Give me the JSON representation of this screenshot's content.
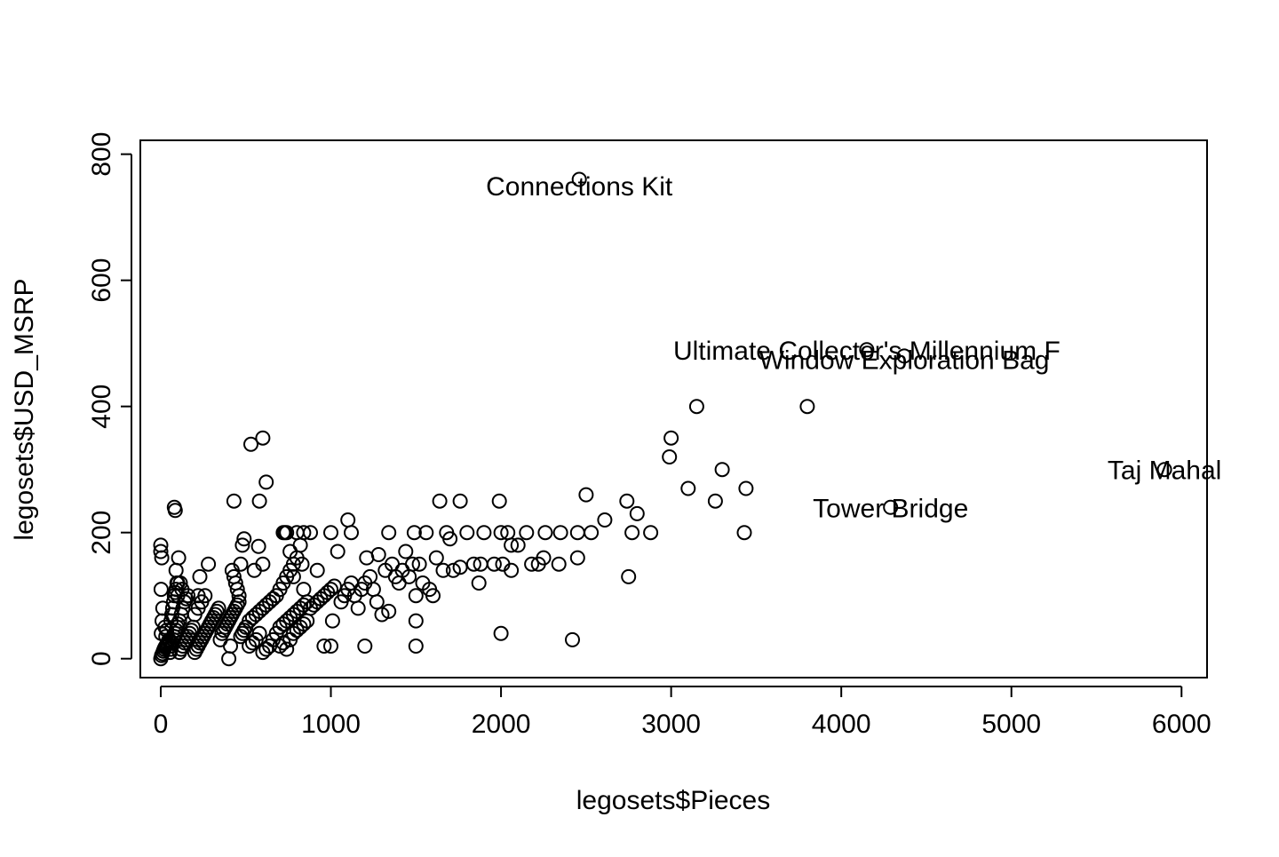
{
  "chart_data": {
    "type": "scatter",
    "title": "",
    "xlabel": "legosets$Pieces",
    "ylabel": "legosets$USD_MSRP",
    "xlim": [
      -120,
      6150
    ],
    "ylim": [
      -30,
      822
    ],
    "x_ticks": [
      0,
      1000,
      2000,
      3000,
      4000,
      5000,
      6000
    ],
    "y_ticks": [
      0,
      200,
      400,
      600,
      800
    ],
    "grid": false,
    "legend": "none",
    "marker": "open-circle",
    "point_color": "#000000",
    "series": [
      {
        "points": [
          [
            0,
            0
          ],
          [
            5,
            5
          ],
          [
            10,
            8
          ],
          [
            15,
            12
          ],
          [
            20,
            15
          ],
          [
            25,
            18
          ],
          [
            30,
            20
          ],
          [
            35,
            22
          ],
          [
            40,
            25
          ],
          [
            45,
            28
          ],
          [
            50,
            30
          ],
          [
            3,
            40
          ],
          [
            8,
            60
          ],
          [
            12,
            80
          ],
          [
            2,
            110
          ],
          [
            6,
            160
          ],
          [
            0,
            170
          ],
          [
            0,
            180
          ],
          [
            25,
            50
          ],
          [
            30,
            35
          ],
          [
            35,
            45
          ],
          [
            55,
            10
          ],
          [
            60,
            15
          ],
          [
            65,
            20
          ],
          [
            70,
            25
          ],
          [
            75,
            30
          ],
          [
            80,
            35
          ],
          [
            85,
            40
          ],
          [
            90,
            45
          ],
          [
            95,
            50
          ],
          [
            100,
            55
          ],
          [
            60,
            60
          ],
          [
            65,
            70
          ],
          [
            70,
            80
          ],
          [
            75,
            90
          ],
          [
            80,
            100
          ],
          [
            85,
            105
          ],
          [
            90,
            110
          ],
          [
            95,
            120
          ],
          [
            100,
            100
          ],
          [
            110,
            10
          ],
          [
            120,
            15
          ],
          [
            130,
            20
          ],
          [
            140,
            25
          ],
          [
            150,
            30
          ],
          [
            160,
            35
          ],
          [
            170,
            40
          ],
          [
            180,
            45
          ],
          [
            190,
            50
          ],
          [
            110,
            60
          ],
          [
            120,
            70
          ],
          [
            130,
            80
          ],
          [
            140,
            90
          ],
          [
            150,
            95
          ],
          [
            160,
            100
          ],
          [
            105,
            160
          ],
          [
            115,
            120
          ],
          [
            125,
            110
          ],
          [
            200,
            10
          ],
          [
            210,
            15
          ],
          [
            220,
            20
          ],
          [
            230,
            25
          ],
          [
            240,
            30
          ],
          [
            250,
            35
          ],
          [
            260,
            40
          ],
          [
            270,
            45
          ],
          [
            280,
            50
          ],
          [
            290,
            55
          ],
          [
            300,
            60
          ],
          [
            310,
            65
          ],
          [
            320,
            70
          ],
          [
            330,
            75
          ],
          [
            340,
            80
          ],
          [
            200,
            70
          ],
          [
            220,
            80
          ],
          [
            240,
            90
          ],
          [
            80,
            240
          ],
          [
            85,
            235
          ],
          [
            90,
            140
          ],
          [
            100,
            120
          ],
          [
            220,
            100
          ],
          [
            230,
            130
          ],
          [
            260,
            100
          ],
          [
            280,
            150
          ],
          [
            350,
            30
          ],
          [
            360,
            40
          ],
          [
            370,
            45
          ],
          [
            380,
            50
          ],
          [
            390,
            55
          ],
          [
            400,
            60
          ],
          [
            410,
            65
          ],
          [
            420,
            70
          ],
          [
            430,
            75
          ],
          [
            440,
            80
          ],
          [
            450,
            85
          ],
          [
            460,
            90
          ],
          [
            470,
            35
          ],
          [
            480,
            40
          ],
          [
            490,
            45
          ],
          [
            500,
            50
          ],
          [
            400,
            0
          ],
          [
            410,
            20
          ],
          [
            420,
            140
          ],
          [
            430,
            130
          ],
          [
            440,
            120
          ],
          [
            450,
            110
          ],
          [
            460,
            100
          ],
          [
            470,
            150
          ],
          [
            480,
            180
          ],
          [
            490,
            190
          ],
          [
            430,
            250
          ],
          [
            530,
            340
          ],
          [
            600,
            350
          ],
          [
            620,
            280
          ],
          [
            580,
            250
          ],
          [
            575,
            178
          ],
          [
            550,
            140
          ],
          [
            600,
            150
          ],
          [
            520,
            60
          ],
          [
            540,
            65
          ],
          [
            560,
            70
          ],
          [
            580,
            75
          ],
          [
            600,
            80
          ],
          [
            620,
            85
          ],
          [
            640,
            90
          ],
          [
            660,
            95
          ],
          [
            680,
            100
          ],
          [
            520,
            20
          ],
          [
            540,
            25
          ],
          [
            560,
            30
          ],
          [
            580,
            40
          ],
          [
            600,
            10
          ],
          [
            620,
            15
          ],
          [
            640,
            20
          ],
          [
            660,
            30
          ],
          [
            680,
            40
          ],
          [
            700,
            50
          ],
          [
            720,
            55
          ],
          [
            740,
            60
          ],
          [
            760,
            65
          ],
          [
            780,
            70
          ],
          [
            800,
            75
          ],
          [
            820,
            80
          ],
          [
            840,
            85
          ],
          [
            860,
            90
          ],
          [
            700,
            20
          ],
          [
            720,
            25
          ],
          [
            740,
            15
          ],
          [
            760,
            30
          ],
          [
            780,
            40
          ],
          [
            800,
            45
          ],
          [
            820,
            50
          ],
          [
            840,
            55
          ],
          [
            860,
            60
          ],
          [
            700,
            110
          ],
          [
            720,
            120
          ],
          [
            740,
            130
          ],
          [
            760,
            140
          ],
          [
            780,
            150
          ],
          [
            800,
            160
          ],
          [
            820,
            180
          ],
          [
            840,
            200
          ],
          [
            720,
            200
          ],
          [
            730,
            200
          ],
          [
            740,
            200
          ],
          [
            760,
            170
          ],
          [
            780,
            130
          ],
          [
            800,
            200
          ],
          [
            830,
            150
          ],
          [
            840,
            110
          ],
          [
            880,
            80
          ],
          [
            900,
            85
          ],
          [
            920,
            90
          ],
          [
            940,
            95
          ],
          [
            960,
            100
          ],
          [
            980,
            105
          ],
          [
            1000,
            110
          ],
          [
            1020,
            115
          ],
          [
            880,
            200
          ],
          [
            920,
            140
          ],
          [
            960,
            20
          ],
          [
            1000,
            20
          ],
          [
            1000,
            200
          ],
          [
            1010,
            60
          ],
          [
            1040,
            170
          ],
          [
            1060,
            90
          ],
          [
            1080,
            100
          ],
          [
            1100,
            110
          ],
          [
            1120,
            120
          ],
          [
            1140,
            100
          ],
          [
            1160,
            80
          ],
          [
            1180,
            110
          ],
          [
            1200,
            120
          ],
          [
            1100,
            220
          ],
          [
            1120,
            200
          ],
          [
            1200,
            20
          ],
          [
            1210,
            160
          ],
          [
            1230,
            130
          ],
          [
            1250,
            110
          ],
          [
            1270,
            90
          ],
          [
            1280,
            165
          ],
          [
            1300,
            70
          ],
          [
            1320,
            140
          ],
          [
            1340,
            200
          ],
          [
            1340,
            75
          ],
          [
            1360,
            150
          ],
          [
            1380,
            130
          ],
          [
            1400,
            120
          ],
          [
            1420,
            140
          ],
          [
            1440,
            170
          ],
          [
            1460,
            130
          ],
          [
            1480,
            150
          ],
          [
            1490,
            200
          ],
          [
            1500,
            20
          ],
          [
            1500,
            60
          ],
          [
            1500,
            100
          ],
          [
            1520,
            150
          ],
          [
            1540,
            120
          ],
          [
            1560,
            200
          ],
          [
            1580,
            110
          ],
          [
            1600,
            100
          ],
          [
            1620,
            160
          ],
          [
            1640,
            250
          ],
          [
            1660,
            140
          ],
          [
            1680,
            200
          ],
          [
            1700,
            190
          ],
          [
            1720,
            140
          ],
          [
            1760,
            250
          ],
          [
            1760,
            145
          ],
          [
            1800,
            200
          ],
          [
            1840,
            150
          ],
          [
            1870,
            120
          ],
          [
            1880,
            150
          ],
          [
            1900,
            200
          ],
          [
            1960,
            150
          ],
          [
            1990,
            250
          ],
          [
            2000,
            200
          ],
          [
            2000,
            40
          ],
          [
            2010,
            150
          ],
          [
            2040,
            200
          ],
          [
            2060,
            140
          ],
          [
            2060,
            180
          ],
          [
            2100,
            180
          ],
          [
            2150,
            200
          ],
          [
            2180,
            150
          ],
          [
            2220,
            150
          ],
          [
            2250,
            160
          ],
          [
            2260,
            200
          ],
          [
            2340,
            150
          ],
          [
            2350,
            200
          ],
          [
            2420,
            30
          ],
          [
            2450,
            160
          ],
          [
            2450,
            200
          ],
          [
            2500,
            260
          ],
          [
            2530,
            200
          ],
          [
            2610,
            220
          ],
          [
            2740,
            250
          ],
          [
            2750,
            130
          ],
          [
            2770,
            200
          ],
          [
            2800,
            230
          ],
          [
            2880,
            200
          ],
          [
            2990,
            320
          ],
          [
            3000,
            350
          ],
          [
            3100,
            270
          ],
          [
            3150,
            400
          ],
          [
            3260,
            250
          ],
          [
            3300,
            300
          ],
          [
            3430,
            200
          ],
          [
            3440,
            270
          ],
          [
            3800,
            400
          ],
          [
            2460,
            760
          ],
          [
            4290,
            240
          ],
          [
            5900,
            300
          ],
          [
            4150,
            490
          ],
          [
            4370,
            480
          ]
        ]
      }
    ],
    "annotations": [
      {
        "text": "Connections Kit",
        "x": 2460,
        "y": 750
      },
      {
        "text": "Ultimate Collector's Millennium F",
        "x": 4150,
        "y": 490
      },
      {
        "text": "Window Exploration Bag",
        "x": 4370,
        "y": 475
      },
      {
        "text": "Taj Mahal",
        "x": 5900,
        "y": 300
      },
      {
        "text": "Tower Bridge",
        "x": 4290,
        "y": 240
      }
    ]
  }
}
